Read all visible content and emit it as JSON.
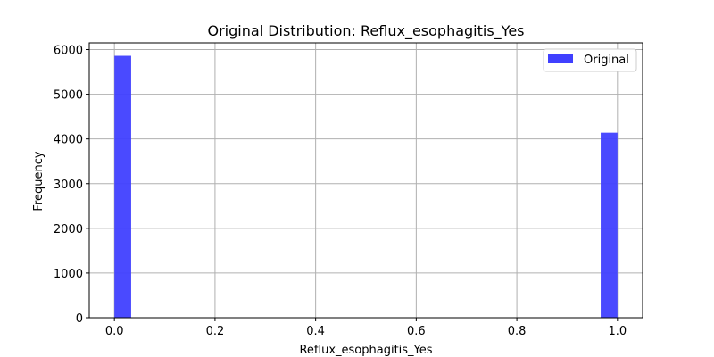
{
  "chart_data": {
    "type": "bar",
    "title": "Original Distribution: Reflux_esophagitis_Yes",
    "xlabel": "Reflux_esophagitis_Yes",
    "ylabel": "Frequency",
    "xlim": [
      -0.05,
      1.05
    ],
    "ylim": [
      0,
      6150
    ],
    "xticks": [
      0.0,
      0.2,
      0.4,
      0.6,
      0.8,
      1.0
    ],
    "xtick_labels": [
      "0.0",
      "0.2",
      "0.4",
      "0.6",
      "0.8",
      "1.0"
    ],
    "yticks": [
      0,
      1000,
      2000,
      3000,
      4000,
      5000,
      6000
    ],
    "ytick_labels": [
      "0",
      "1000",
      "2000",
      "3000",
      "4000",
      "5000",
      "6000"
    ],
    "grid": true,
    "legend_position": "top-right",
    "series": [
      {
        "name": "Original",
        "color": "#4040ff",
        "bins": [
          {
            "x0": 0.0,
            "x1": 0.0333,
            "value": 5860
          },
          {
            "x0": 0.9667,
            "x1": 1.0,
            "value": 4140
          }
        ]
      }
    ]
  }
}
